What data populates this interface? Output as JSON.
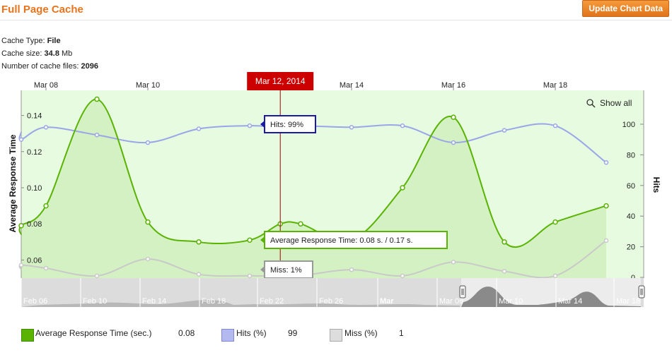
{
  "header": {
    "title": "Full Page Cache",
    "update_button": "Update Chart Data"
  },
  "info": [
    {
      "label": "Cache Type: ",
      "value": "File"
    },
    {
      "label": "Cache size: ",
      "value": "34.8",
      "suffix": " Mb"
    },
    {
      "label": "Number of cache files: ",
      "value": "2096"
    }
  ],
  "chart_data": {
    "type": "line",
    "x_axis": {
      "ticks": [
        "Mar 08",
        "Mar 10",
        "Mar 12, 2014",
        "Mar 14",
        "Mar 16",
        "Mar 18"
      ],
      "highlight": "Mar 12, 2014"
    },
    "y_left": {
      "label": "Average Response Time",
      "ticks": [
        "0.14",
        "0.12",
        "0.10",
        "0.08",
        "0.06"
      ],
      "range": [
        0.06,
        0.15
      ]
    },
    "y_right": {
      "label": "Hits",
      "ticks": [
        "100",
        "80",
        "60",
        "40",
        "20",
        "0"
      ],
      "range": [
        0,
        110
      ]
    },
    "x": [
      6.5,
      7,
      8,
      9,
      10,
      11,
      12,
      12.6,
      13,
      14,
      15,
      16,
      17,
      18,
      19
    ],
    "series": [
      {
        "name": "Average Response Time (sec.)",
        "axis": "left",
        "color": "#59b300",
        "values": [
          0.074,
          0.079,
          0.09,
          0.149,
          0.081,
          0.07,
          0.071,
          0.08,
          0.08,
          0.071,
          0.1,
          0.139,
          0.07,
          0.081,
          0.09
        ]
      },
      {
        "name": "Hits (%)",
        "axis": "right",
        "color": "#9aa6e8",
        "values": [
          95,
          90,
          98,
          93,
          88,
          97,
          99,
          98,
          99,
          98,
          99,
          88,
          96,
          99,
          75
        ]
      },
      {
        "name": "Miss (%)",
        "axis": "right",
        "color": "#cccccc",
        "values": [
          5,
          8,
          6,
          1,
          12,
          2,
          1,
          1,
          1,
          5,
          1,
          10,
          4,
          1,
          24
        ]
      }
    ],
    "tooltips": {
      "hits": "Hits: 99%",
      "response": "Average Response Time: 0.08 s. / 0.17 s.",
      "miss": "Miss: 1%"
    },
    "show_all": "Show all",
    "navigator": {
      "labels": [
        "Feb 06",
        "Feb 10",
        "Feb 14",
        "Feb 18",
        "Feb 22",
        "Feb 26",
        "Mar",
        "Mar 06",
        "Mar 10",
        "Mar 14",
        "Mar 18"
      ],
      "bold_label": "Mar"
    }
  },
  "legend": [
    {
      "label": "Average Response Time (sec.)",
      "value": "0.08",
      "color": "#59b300"
    },
    {
      "label": "Hits (%)",
      "value": "99",
      "color": "#b4b9f0"
    },
    {
      "label": "Miss (%)",
      "value": "1",
      "color": "#dddddd"
    }
  ]
}
